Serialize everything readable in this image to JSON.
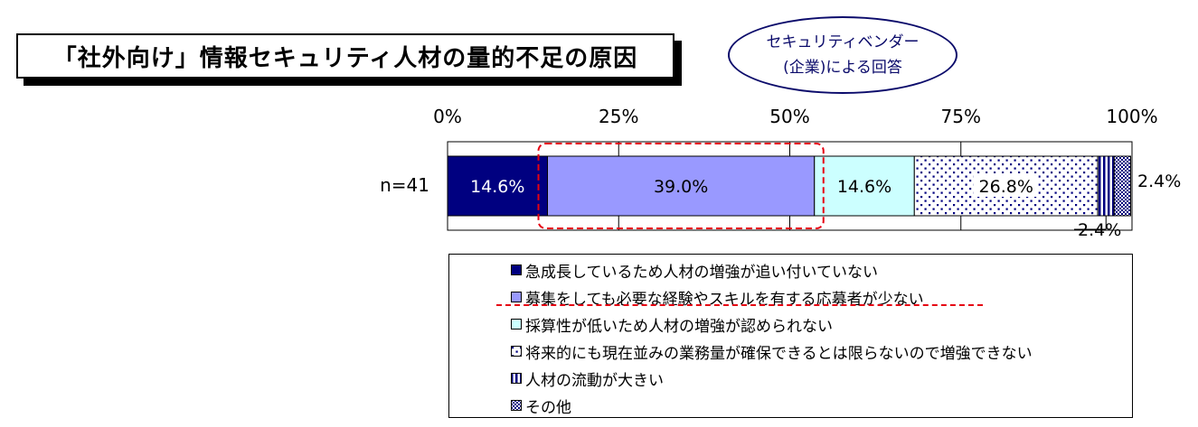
{
  "title": "「社外向け」情報セキュリティ人材の量的不足の原因",
  "respondent": {
    "line1": "セキュリティベンダー",
    "line2": "(企業)による回答"
  },
  "colors": {
    "navy": "#000080",
    "lavender": "#9999ff",
    "pale_cyan": "#ccffff",
    "dots": "#000080",
    "highlight": "#e60012"
  },
  "chart_data": {
    "type": "bar",
    "orientation": "horizontal-stacked",
    "categories": [
      "n=41"
    ],
    "x_ticks": [
      "0%",
      "25%",
      "50%",
      "75%",
      "100%"
    ],
    "xlim": [
      0,
      100
    ],
    "grid": true,
    "series": [
      {
        "name": "急成長しているため人材の増強が追い付いていない",
        "values": [
          14.6
        ],
        "label": "14.6%",
        "pattern": "solid-navy"
      },
      {
        "name": "募集をしても必要な経験やスキルを有する応募者が少ない",
        "values": [
          39.0
        ],
        "label": "39.0%",
        "pattern": "solid-lavender"
      },
      {
        "name": "採算性が低いため人材の増強が認められない",
        "values": [
          14.6
        ],
        "label": "14.6%",
        "pattern": "solid-pale-cyan"
      },
      {
        "name": "将来的にも現在並みの業務量が確保できるとは限らないので増強できない",
        "values": [
          26.8
        ],
        "label": "26.8%",
        "pattern": "dots"
      },
      {
        "name": "人材の流動が大きい",
        "values": [
          2.4
        ],
        "label": "2.4%",
        "pattern": "vertical-stripes"
      },
      {
        "name": "その他",
        "values": [
          2.4
        ],
        "label": "2.4%",
        "pattern": "crosshatch"
      }
    ],
    "highlighted_series": [
      "募集をしても必要な経験やスキルを有する応募者が少ない"
    ],
    "legend_position": "bottom"
  }
}
